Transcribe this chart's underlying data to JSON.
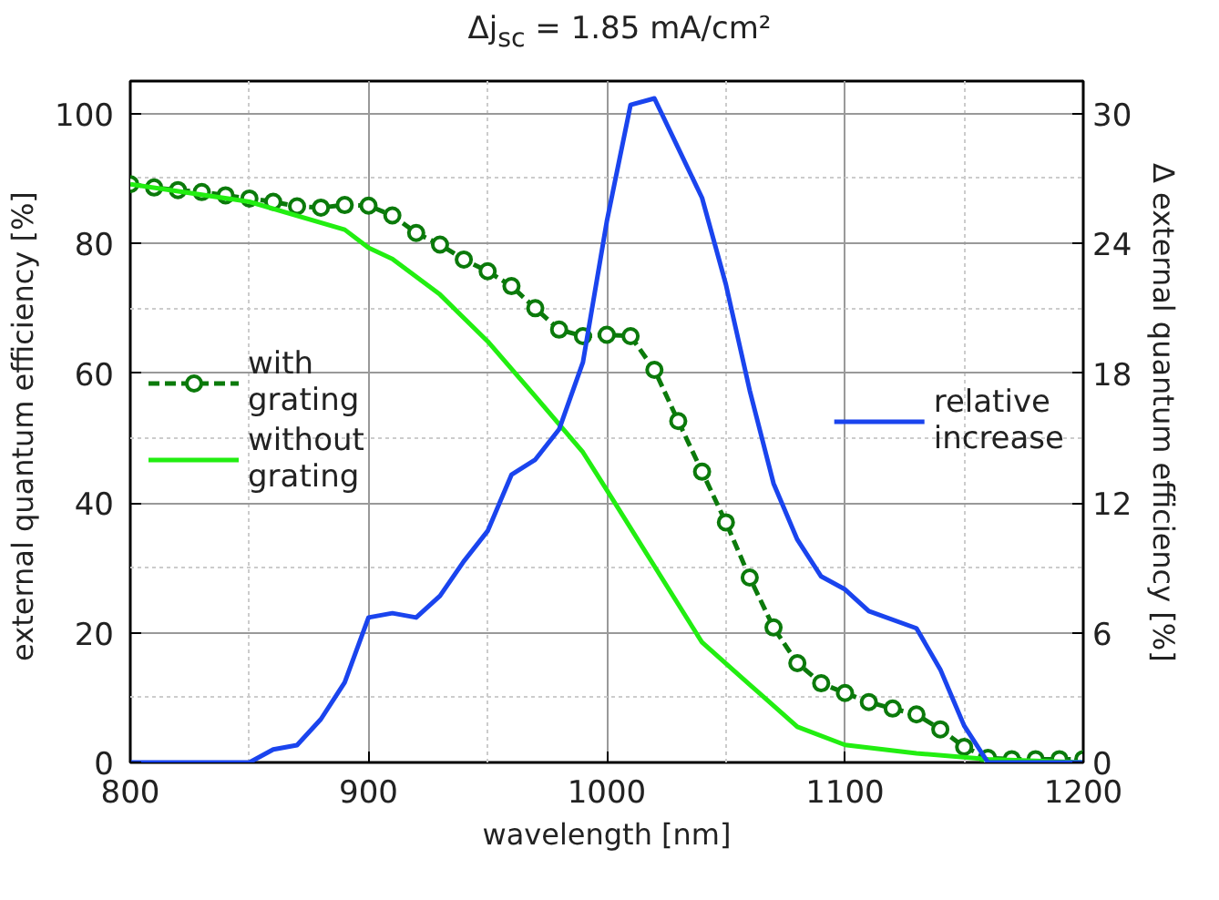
{
  "chart_data": {
    "type": "line",
    "title": "Δj$_{sc}$ = 1.85 mA/cm²",
    "xlabel": "wavelength [nm]",
    "ylabel": "external quantum efficiency  [%]",
    "y2label": "Δ  external quantum efficiency  [%]",
    "xlim": [
      800,
      1200
    ],
    "ylim": [
      0,
      105
    ],
    "y2lim": [
      0,
      31.5
    ],
    "xticks": [
      800,
      900,
      1000,
      1100,
      1200
    ],
    "yticks": [
      0,
      20,
      40,
      60,
      80,
      100
    ],
    "y2ticks": [
      0,
      6,
      12,
      18,
      24,
      30
    ],
    "grid": true,
    "legend": "left",
    "series": [
      {
        "name": "with grating",
        "color": "#0b7a0b",
        "marker": "circle",
        "line_style": "dashed",
        "x": [
          800,
          810,
          820,
          830,
          840,
          850,
          860,
          870,
          880,
          890,
          900,
          910,
          920,
          930,
          940,
          950,
          960,
          970,
          980,
          990,
          1000,
          1010,
          1020,
          1030,
          1040,
          1050,
          1060,
          1070,
          1080,
          1090,
          1100,
          1110,
          1120,
          1130,
          1140,
          1150,
          1160,
          1170,
          1180,
          1190,
          1200
        ],
        "values": [
          89.1,
          88.6,
          88.2,
          87.9,
          87.4,
          86.9,
          86.4,
          85.7,
          85.5,
          85.9,
          85.8,
          84.3,
          81.6,
          79.8,
          77.5,
          75.7,
          73.4,
          70.0,
          66.7,
          65.7,
          65.9,
          65.7,
          60.5,
          52.6,
          44.8,
          37.0,
          28.5,
          20.8,
          15.3,
          12.2,
          10.7,
          9.3,
          8.3,
          7.4,
          5.1,
          2.4,
          0.7,
          0.5,
          0.5,
          0.5,
          0.5
        ]
      },
      {
        "name": "without grating",
        "color": "#22ee11",
        "marker": "none",
        "line_style": "solid",
        "x": [
          800,
          850,
          890,
          900,
          910,
          930,
          950,
          970,
          990,
          1000,
          1040,
          1060,
          1080,
          1100,
          1130,
          1160,
          1200
        ],
        "values": [
          89.1,
          86.4,
          82.1,
          79.3,
          77.6,
          72.1,
          64.9,
          56.4,
          47.8,
          42,
          18.5,
          12,
          5.5,
          2.7,
          1.4,
          0.5,
          0
        ]
      },
      {
        "name": "relative increase",
        "color": "#1a44ee",
        "marker": "none",
        "line_style": "solid",
        "axis": "y2",
        "x": [
          800,
          850,
          860,
          870,
          880,
          890,
          900,
          910,
          920,
          930,
          940,
          950,
          960,
          970,
          980,
          990,
          1000,
          1010,
          1020,
          1030,
          1040,
          1050,
          1060,
          1070,
          1080,
          1090,
          1100,
          1110,
          1130,
          1140,
          1150,
          1160,
          1200
        ],
        "values": [
          0,
          0,
          0.6,
          0.8,
          2.0,
          3.7,
          6.7,
          6.9,
          6.7,
          7.7,
          9.3,
          10.7,
          13.3,
          14.0,
          15.4,
          18.5,
          25,
          30.4,
          30.7,
          28.4,
          26.1,
          22.1,
          17.2,
          12.9,
          10.3,
          8.6,
          8.0,
          7.0,
          6.2,
          4.3,
          1.7,
          0,
          0
        ]
      }
    ]
  }
}
